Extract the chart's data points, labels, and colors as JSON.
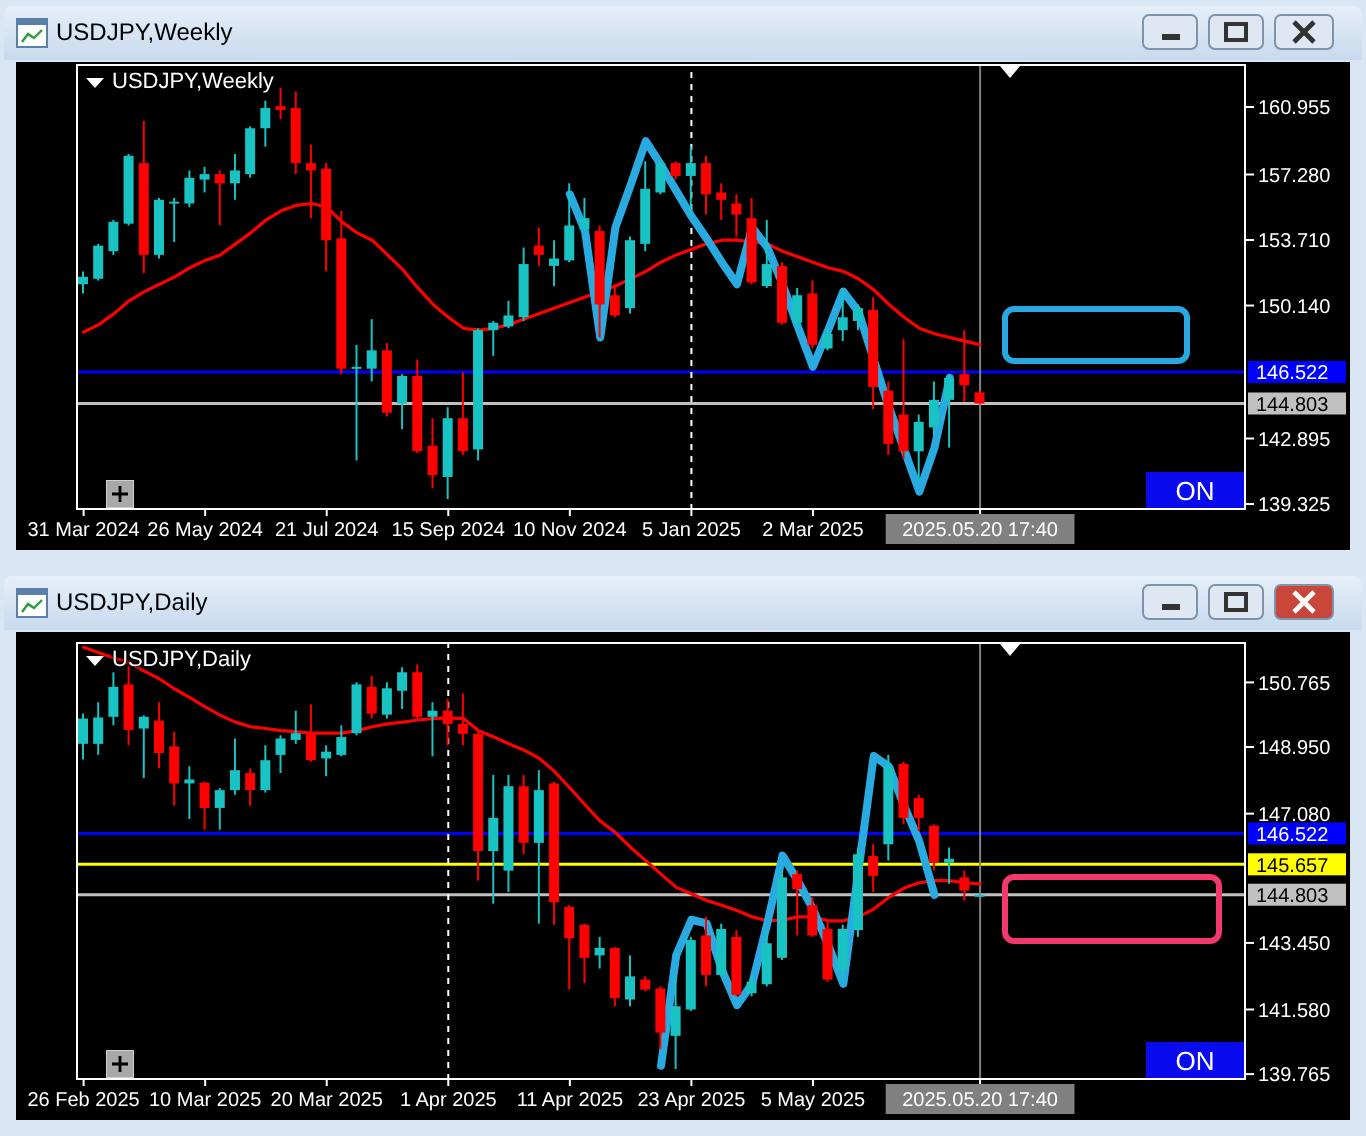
{
  "chart_data": [
    {
      "type": "candlestick",
      "title": "USDJPY,Weekly",
      "categories": [
        "31 Mar 2024",
        null,
        null,
        null,
        null,
        null,
        null,
        null,
        "26 May 2024",
        null,
        null,
        null,
        null,
        null,
        null,
        null,
        "21 Jul 2024",
        null,
        null,
        null,
        null,
        null,
        null,
        null,
        "15 Sep 2024",
        null,
        null,
        null,
        null,
        null,
        null,
        null,
        "10 Nov 2024",
        null,
        null,
        null,
        null,
        null,
        null,
        null,
        "5 Jan 2025",
        null,
        null,
        null,
        null,
        null,
        null,
        null,
        "2 Mar 2025",
        null,
        null,
        null,
        null,
        null,
        null,
        null,
        null,
        null,
        null,
        "2025.05.20 17:40",
        null,
        null,
        null,
        null,
        null,
        null,
        null,
        null,
        null,
        null,
        null,
        null,
        null,
        null,
        null,
        null,
        null
      ],
      "ohlc": [
        [
          151.3,
          152.0,
          150.8,
          151.7
        ],
        [
          151.6,
          153.5,
          151.5,
          153.4
        ],
        [
          153.1,
          154.8,
          152.9,
          154.7
        ],
        [
          154.6,
          158.4,
          154.5,
          158.3
        ],
        [
          157.9,
          160.2,
          151.9,
          152.9
        ],
        [
          152.9,
          156.0,
          152.7,
          155.9
        ],
        [
          155.7,
          156.0,
          153.6,
          155.8
        ],
        [
          155.7,
          157.5,
          155.5,
          157.1
        ],
        [
          157.0,
          157.7,
          156.3,
          157.3
        ],
        [
          157.3,
          157.5,
          154.5,
          156.8
        ],
        [
          156.8,
          158.4,
          155.9,
          157.5
        ],
        [
          157.3,
          159.9,
          157.1,
          159.8
        ],
        [
          159.8,
          161.3,
          158.8,
          160.9
        ],
        [
          161.0,
          162.0,
          160.3,
          160.8
        ],
        [
          160.9,
          161.8,
          157.3,
          157.9
        ],
        [
          157.9,
          158.9,
          154.9,
          157.5
        ],
        [
          157.6,
          157.9,
          152.0,
          153.7
        ],
        [
          153.8,
          155.3,
          146.4,
          146.7
        ],
        [
          146.7,
          148.0,
          141.7,
          146.8
        ],
        [
          146.7,
          149.4,
          146.0,
          147.7
        ],
        [
          147.7,
          148.1,
          144.1,
          144.3
        ],
        [
          144.8,
          146.4,
          143.4,
          146.3
        ],
        [
          146.3,
          147.2,
          142.1,
          142.2
        ],
        [
          142.5,
          144.0,
          140.2,
          140.9
        ],
        [
          140.8,
          144.6,
          139.6,
          144.0
        ],
        [
          144.0,
          146.5,
          142.0,
          142.2
        ],
        [
          142.3,
          148.9,
          141.7,
          148.8
        ],
        [
          148.8,
          149.3,
          147.4,
          149.2
        ],
        [
          149.0,
          150.4,
          148.9,
          149.6
        ],
        [
          149.5,
          153.3,
          149.3,
          152.4
        ],
        [
          153.4,
          154.4,
          152.3,
          152.9
        ],
        [
          152.3,
          153.7,
          151.2,
          152.7
        ],
        [
          152.6,
          156.8,
          152.5,
          154.5
        ],
        [
          154.3,
          156.0,
          154.2,
          154.9
        ],
        [
          154.2,
          154.5,
          148.4,
          150.2
        ],
        [
          150.7,
          151.3,
          149.5,
          149.6
        ],
        [
          150.0,
          153.9,
          149.7,
          153.7
        ],
        [
          153.5,
          158.0,
          153.1,
          156.5
        ],
        [
          156.3,
          158.0,
          156.2,
          157.9
        ],
        [
          157.9,
          158.0,
          157.0,
          157.2
        ],
        [
          157.2,
          158.8,
          155.1,
          157.9
        ],
        [
          157.9,
          158.3,
          155.1,
          156.2
        ],
        [
          156.3,
          156.8,
          154.8,
          155.9
        ],
        [
          155.7,
          156.2,
          153.9,
          155.1
        ],
        [
          154.9,
          156.0,
          151.3,
          151.4
        ],
        [
          151.2,
          154.8,
          151.1,
          152.4
        ],
        [
          152.3,
          152.5,
          149.1,
          149.2
        ],
        [
          149.2,
          151.1,
          148.9,
          150.7
        ],
        [
          150.8,
          151.5,
          147.8,
          148.0
        ],
        [
          147.8,
          148.9,
          147.7,
          148.6
        ],
        [
          148.8,
          151.1,
          148.2,
          149.5
        ],
        [
          149.3,
          150.2,
          148.8,
          150.0
        ],
        [
          149.9,
          150.6,
          144.5,
          145.7
        ],
        [
          145.5,
          146.0,
          142.0,
          142.6
        ],
        [
          144.2,
          148.3,
          141.8,
          142.2
        ],
        [
          142.2,
          144.2,
          140.6,
          143.8
        ],
        [
          143.5,
          146.0,
          143.1,
          145.0
        ],
        [
          145.0,
          146.3,
          142.4,
          146.2
        ],
        [
          146.4,
          148.8,
          144.9,
          145.8
        ],
        [
          145.4,
          145.5,
          144.8,
          144.8
        ],
        null,
        null,
        null,
        null,
        null,
        null,
        null,
        null,
        null,
        null,
        null,
        null,
        null,
        null,
        null,
        null,
        null
      ],
      "colors": [
        "#19c3c3",
        "#19c3c3",
        "#19c3c3",
        "#19c3c3",
        "#ff0000",
        "#19c3c3",
        "#19c3c3",
        "#19c3c3",
        "#19c3c3",
        "#ff0000",
        "#19c3c3",
        "#19c3c3",
        "#19c3c3",
        "#ff0000",
        "#ff0000",
        "#ff0000",
        "#ff0000",
        "#ff0000",
        "#19c3c3",
        "#19c3c3",
        "#ff0000",
        "#19c3c3",
        "#ff0000",
        "#ff0000",
        "#19c3c3",
        "#ff0000",
        "#19c3c3",
        "#19c3c3",
        "#19c3c3",
        "#19c3c3",
        "#ff0000",
        "#19c3c3",
        "#19c3c3",
        "#19c3c3",
        "#ff0000",
        "#ff0000",
        "#19c3c3",
        "#19c3c3",
        "#19c3c3",
        "#ff0000",
        "#19c3c3",
        "#ff0000",
        "#ff0000",
        "#ff0000",
        "#ff0000",
        "#19c3c3",
        "#ff0000",
        "#19c3c3",
        "#ff0000",
        "#19c3c3",
        "#19c3c3",
        "#19c3c3",
        "#ff0000",
        "#ff0000",
        "#ff0000",
        "#19c3c3",
        "#19c3c3",
        "#19c3c3",
        "#ff0000",
        "#ff0000",
        null,
        null,
        null,
        null,
        null,
        null,
        null,
        null,
        null,
        null,
        null,
        null,
        null,
        null,
        null,
        null,
        null
      ],
      "series": [
        {
          "type": "line",
          "color": "#ff0000",
          "values": [
            148.7,
            149.1,
            149.7,
            150.4,
            150.9,
            151.3,
            151.7,
            152.2,
            152.6,
            152.9,
            153.5,
            154.1,
            154.8,
            155.3,
            155.6,
            155.7,
            155.5,
            154.7,
            154.1,
            153.7,
            152.9,
            152.1,
            151.1,
            150.2,
            149.5,
            148.9,
            148.8,
            148.9,
            149.1,
            149.4,
            149.7,
            150.0,
            150.3,
            150.6,
            150.9,
            151.2,
            151.6,
            152.0,
            152.5,
            152.9,
            153.2,
            153.5,
            153.7,
            153.7,
            153.6,
            153.5,
            153.1,
            152.8,
            152.5,
            152.2,
            152.0,
            151.6,
            151.0,
            150.2,
            149.5,
            148.9,
            148.6,
            148.4,
            148.2,
            148.0,
            null,
            null,
            null,
            null,
            null,
            null,
            null,
            null,
            null,
            null,
            null,
            null,
            null,
            null,
            null,
            null,
            null
          ]
        },
        {
          "type": "line",
          "color": "#29abe2",
          "values": [
            null,
            null,
            null,
            null,
            null,
            null,
            null,
            null,
            null,
            null,
            null,
            null,
            null,
            null,
            null,
            null,
            null,
            null,
            null,
            null,
            null,
            null,
            null,
            null,
            null,
            null,
            null,
            null,
            null,
            null,
            null,
            null,
            156.2,
            154.2,
            148.4,
            154.4,
            156.7,
            159.1,
            157.8,
            156.4,
            155.0,
            153.8,
            152.5,
            151.3,
            154.4,
            153.3,
            151.3,
            149.0,
            146.8,
            148.8,
            150.9,
            149.8,
            147.2,
            144.6,
            142.3,
            140.0,
            142.4,
            146.2,
            null,
            null,
            null,
            null,
            null,
            null,
            null,
            null,
            null,
            null,
            null,
            null,
            null,
            null,
            null,
            null,
            null,
            null,
            null
          ]
        }
      ],
      "ylim": [
        139.0,
        163.3
      ],
      "yticks": [
        139.325,
        142.895,
        {
          "value": 150.14,
          "label": "150.140"
        },
        {
          "value": 153.71,
          "label": "153.710"
        },
        {
          "value": 157.28,
          "label": "157.280"
        },
        160.955
      ],
      "ref_lines": [
        {
          "axis": "y",
          "value": 146.522,
          "label": "146.522",
          "color": "#0000ff"
        },
        {
          "axis": "y",
          "value": 144.803,
          "label": "144.803",
          "color": "#c0c0c0"
        },
        {
          "axis": "x",
          "value": "5 Jan 2025",
          "color": "#ffffff",
          "line_style": "dashed"
        },
        {
          "axis": "x",
          "value": "2025.05.20 17:40",
          "color": "#808080"
        }
      ],
      "annotations": [
        "ON"
      ]
    },
    {
      "type": "candlestick",
      "title": "USDJPY,Daily",
      "categories": [
        "26 Feb 2025",
        null,
        null,
        null,
        null,
        null,
        null,
        null,
        "10 Mar 2025",
        null,
        null,
        null,
        null,
        null,
        null,
        null,
        "20 Mar 2025",
        null,
        null,
        null,
        null,
        null,
        null,
        null,
        "1 Apr 2025",
        null,
        null,
        null,
        null,
        null,
        null,
        null,
        "11 Apr 2025",
        null,
        null,
        null,
        null,
        null,
        null,
        null,
        "23 Apr 2025",
        null,
        null,
        null,
        null,
        null,
        null,
        null,
        "5 May 2025",
        null,
        null,
        null,
        null,
        null,
        null,
        null,
        null,
        null,
        null,
        "2025.05.20 17:40",
        null,
        null,
        null,
        null,
        null,
        null,
        null,
        null,
        null,
        null,
        null,
        null,
        null,
        null,
        null,
        null,
        null
      ],
      "ohlc": [
        [
          149.04,
          149.89,
          148.6,
          149.75
        ],
        [
          149.04,
          150.21,
          148.73,
          149.78
        ],
        [
          149.8,
          151.05,
          149.56,
          150.64
        ],
        [
          150.71,
          151.23,
          149.0,
          149.43
        ],
        [
          149.47,
          149.84,
          148.08,
          149.8
        ],
        [
          149.69,
          150.21,
          148.35,
          148.78
        ],
        [
          148.97,
          149.38,
          147.3,
          147.93
        ],
        [
          147.93,
          148.41,
          146.93,
          148.04
        ],
        [
          147.95,
          147.98,
          146.63,
          147.24
        ],
        [
          147.24,
          147.8,
          146.63,
          147.74
        ],
        [
          147.74,
          149.19,
          147.61,
          148.3
        ],
        [
          148.22,
          148.35,
          147.3,
          147.74
        ],
        [
          147.74,
          149.0,
          147.67,
          148.58
        ],
        [
          148.73,
          149.28,
          148.22,
          149.19
        ],
        [
          149.15,
          149.97,
          149.04,
          149.34
        ],
        [
          149.34,
          150.15,
          148.54,
          148.58
        ],
        [
          148.63,
          149.0,
          148.13,
          148.82
        ],
        [
          148.73,
          149.56,
          148.69,
          149.23
        ],
        [
          149.34,
          150.77,
          149.28,
          150.71
        ],
        [
          150.64,
          150.95,
          149.75,
          149.89
        ],
        [
          149.86,
          150.77,
          149.75,
          150.6
        ],
        [
          150.53,
          151.19,
          150.02,
          151.05
        ],
        [
          151.05,
          151.27,
          149.75,
          149.8
        ],
        [
          149.8,
          150.21,
          148.69,
          149.97
        ],
        [
          149.97,
          150.3,
          149.0,
          149.6
        ],
        [
          149.6,
          150.45,
          149.0,
          149.32
        ],
        [
          149.32,
          149.38,
          145.2,
          146.03
        ],
        [
          146.03,
          148.17,
          144.55,
          146.96
        ],
        [
          145.48,
          148.17,
          144.88,
          147.85
        ],
        [
          147.85,
          148.17,
          145.94,
          146.26
        ],
        [
          146.26,
          148.3,
          143.99,
          147.74
        ],
        [
          147.93,
          147.98,
          143.96,
          144.59
        ],
        [
          144.46,
          144.51,
          142.14,
          143.58
        ],
        [
          143.96,
          143.99,
          142.32,
          143.03
        ],
        [
          143.1,
          143.62,
          142.73,
          143.31
        ],
        [
          143.31,
          143.34,
          141.67,
          141.9
        ],
        [
          141.86,
          143.1,
          141.67,
          142.51
        ],
        [
          142.42,
          142.51,
          142.1,
          142.14
        ],
        [
          142.17,
          142.23,
          140.47,
          140.93
        ],
        [
          140.84,
          142.51,
          139.91,
          141.67
        ],
        [
          141.58,
          143.62,
          141.54,
          143.53
        ],
        [
          143.66,
          144.18,
          142.23,
          142.55
        ],
        [
          142.55,
          143.99,
          142.51,
          143.84
        ],
        [
          143.62,
          143.81,
          141.95,
          141.99
        ],
        [
          142.04,
          142.51,
          141.95,
          142.36
        ],
        [
          142.29,
          143.81,
          142.23,
          143.44
        ],
        [
          143.03,
          145.48,
          142.97,
          145.29
        ],
        [
          145.38,
          145.48,
          143.66,
          144.96
        ],
        [
          144.51,
          144.73,
          143.62,
          143.66
        ],
        [
          143.84,
          144.09,
          142.36,
          142.42
        ],
        [
          142.69,
          143.96,
          142.42,
          143.84
        ],
        [
          143.81,
          146.13,
          143.62,
          145.94
        ],
        [
          145.89,
          146.22,
          144.88,
          145.33
        ],
        [
          146.22,
          148.73,
          145.76,
          148.41
        ],
        [
          148.48,
          148.54,
          146.78,
          146.96
        ],
        [
          147.52,
          147.61,
          146.59,
          146.96
        ],
        [
          146.74,
          146.78,
          145.48,
          145.7
        ],
        [
          145.7,
          146.13,
          145.11,
          145.81
        ],
        [
          145.29,
          145.48,
          144.64,
          144.92
        ],
        [
          144.78,
          144.84,
          144.76,
          144.8
        ],
        null,
        null,
        null,
        null,
        null,
        null,
        null,
        null,
        null,
        null,
        null,
        null,
        null,
        null,
        null,
        null,
        null
      ],
      "colors": [
        "#19c3c3",
        "#19c3c3",
        "#19c3c3",
        "#ff0000",
        "#19c3c3",
        "#ff0000",
        "#ff0000",
        "#19c3c3",
        "#ff0000",
        "#19c3c3",
        "#19c3c3",
        "#ff0000",
        "#19c3c3",
        "#19c3c3",
        "#19c3c3",
        "#ff0000",
        "#19c3c3",
        "#19c3c3",
        "#19c3c3",
        "#ff0000",
        "#19c3c3",
        "#19c3c3",
        "#ff0000",
        "#19c3c3",
        "#ff0000",
        "#ff0000",
        "#ff0000",
        "#19c3c3",
        "#19c3c3",
        "#ff0000",
        "#19c3c3",
        "#ff0000",
        "#ff0000",
        "#ff0000",
        "#19c3c3",
        "#ff0000",
        "#19c3c3",
        "#ff0000",
        "#ff0000",
        "#19c3c3",
        "#19c3c3",
        "#ff0000",
        "#19c3c3",
        "#ff0000",
        "#19c3c3",
        "#19c3c3",
        "#19c3c3",
        "#ff0000",
        "#ff0000",
        "#ff0000",
        "#19c3c3",
        "#19c3c3",
        "#ff0000",
        "#19c3c3",
        "#ff0000",
        "#ff0000",
        "#ff0000",
        "#19c3c3",
        "#ff0000",
        "#19c3c3",
        null,
        null,
        null,
        null,
        null,
        null,
        null,
        null,
        null,
        null,
        null,
        null,
        null,
        null,
        null,
        null,
        null
      ],
      "series": [
        {
          "type": "line",
          "color": "#ff0000",
          "values": [
            151.75,
            151.6,
            151.45,
            151.32,
            151.08,
            150.86,
            150.58,
            150.34,
            150.08,
            149.84,
            149.65,
            149.52,
            149.47,
            149.41,
            149.38,
            149.34,
            149.34,
            149.34,
            149.41,
            149.52,
            149.6,
            149.65,
            149.71,
            149.75,
            149.77,
            149.75,
            149.41,
            149.23,
            149.04,
            148.86,
            148.63,
            148.26,
            147.8,
            147.33,
            146.87,
            146.55,
            146.13,
            145.76,
            145.38,
            145.01,
            144.83,
            144.64,
            144.51,
            144.36,
            144.18,
            144.07,
            144.09,
            144.18,
            144.18,
            144.07,
            144.07,
            144.18,
            144.4,
            144.73,
            144.99,
            145.14,
            145.2,
            145.2,
            145.14,
            145.11,
            null,
            null,
            null,
            null,
            null,
            null,
            null,
            null,
            null,
            null,
            null,
            null,
            null,
            null,
            null,
            null,
            null
          ]
        },
        {
          "type": "line",
          "color": "#29abe2",
          "values": [
            null,
            null,
            null,
            null,
            null,
            null,
            null,
            null,
            null,
            null,
            null,
            null,
            null,
            null,
            null,
            null,
            null,
            null,
            null,
            null,
            null,
            null,
            null,
            null,
            null,
            null,
            null,
            null,
            null,
            null,
            null,
            null,
            null,
            null,
            null,
            null,
            null,
            null,
            140.0,
            143.1,
            144.1,
            144.0,
            142.7,
            141.7,
            142.3,
            144.0,
            145.9,
            145.2,
            144.4,
            143.4,
            142.3,
            145.5,
            148.7,
            148.4,
            147.3,
            146.3,
            144.8,
            null,
            null,
            null,
            null,
            null,
            null,
            null,
            null,
            null,
            null,
            null,
            null,
            null,
            null,
            null,
            null,
            null,
            null,
            null,
            null
          ]
        }
      ],
      "ylim": [
        139.6,
        151.9
      ],
      "yticks": [
        139.765,
        {
          "value": 141.58,
          "label": "141.580"
        },
        {
          "value": 143.45,
          "label": "143.450"
        },
        {
          "value": 147.08,
          "label": "147.080"
        },
        {
          "value": 148.95,
          "label": "148.950"
        },
        150.765
      ],
      "ref_lines": [
        {
          "axis": "y",
          "value": 146.522,
          "label": "146.522",
          "color": "#0000ff"
        },
        {
          "axis": "y",
          "value": 145.657,
          "label": "145.657",
          "color": "#ffff00"
        },
        {
          "axis": "y",
          "value": 144.803,
          "label": "144.803",
          "color": "#c0c0c0"
        },
        {
          "axis": "x",
          "value": "1 Apr 2025",
          "color": "#ffffff",
          "line_style": "dashed"
        },
        {
          "axis": "x",
          "value": "2025.05.20 17:40",
          "color": "#808080"
        }
      ],
      "annotations": [
        "ON"
      ]
    }
  ]
}
